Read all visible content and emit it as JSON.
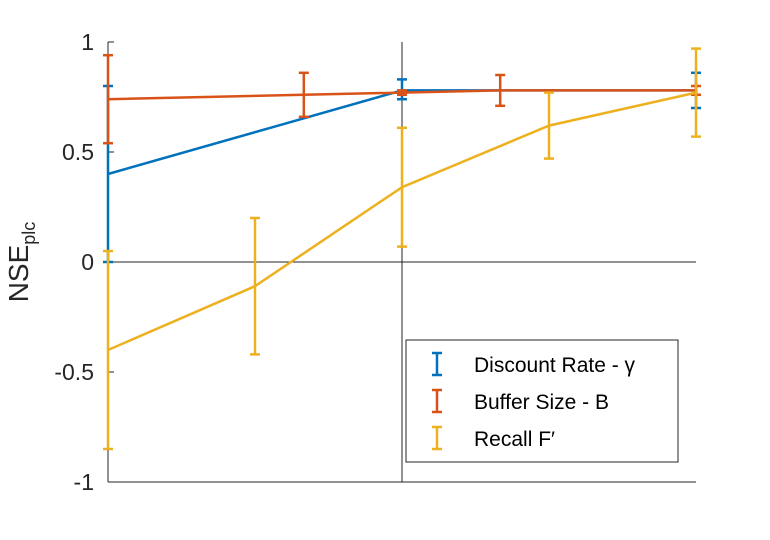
{
  "chart_data": {
    "type": "line",
    "title": "",
    "xlabel": "",
    "ylabel": "NSE",
    "ylabel_subscript": "plc",
    "ylim": [
      -1,
      1
    ],
    "xlim": [
      0,
      1
    ],
    "yticks": [
      {
        "value": 1,
        "label": "1"
      },
      {
        "value": 0.5,
        "label": "0.5"
      },
      {
        "value": 0,
        "label": "0"
      },
      {
        "value": -0.5,
        "label": "-0.5"
      },
      {
        "value": -1,
        "label": "-1"
      }
    ],
    "grid": false,
    "reference_lines": {
      "horizontal": 0,
      "vertical": 0.5
    },
    "legend_position": "bottom-right",
    "series": [
      {
        "name": "Discount Rate - γ",
        "color": "#0072bd",
        "points": [
          {
            "x": 0.0,
            "y": 0.4,
            "lo": 0.0,
            "hi": 0.8
          },
          {
            "x": 0.5,
            "y": 0.78,
            "lo": 0.74,
            "hi": 0.83
          },
          {
            "x": 1.0,
            "y": 0.78,
            "lo": 0.7,
            "hi": 0.86
          }
        ]
      },
      {
        "name": "Buffer Size - B",
        "color": "#d95319",
        "points": [
          {
            "x": 0.0,
            "y": 0.74,
            "lo": 0.54,
            "hi": 0.94
          },
          {
            "x": 0.333,
            "y": 0.76,
            "lo": 0.66,
            "hi": 0.86
          },
          {
            "x": 0.5,
            "y": 0.77,
            "lo": 0.76,
            "hi": 0.78
          },
          {
            "x": 0.667,
            "y": 0.78,
            "lo": 0.71,
            "hi": 0.85
          },
          {
            "x": 1.0,
            "y": 0.78,
            "lo": 0.76,
            "hi": 0.8
          }
        ]
      },
      {
        "name": "Recall F′",
        "color": "#edb120",
        "points": [
          {
            "x": 0.0,
            "y": -0.4,
            "lo": -0.85,
            "hi": 0.05
          },
          {
            "x": 0.25,
            "y": -0.11,
            "lo": -0.42,
            "hi": 0.2
          },
          {
            "x": 0.5,
            "y": 0.34,
            "lo": 0.07,
            "hi": 0.61
          },
          {
            "x": 0.75,
            "y": 0.62,
            "lo": 0.47,
            "hi": 0.77
          },
          {
            "x": 1.0,
            "y": 0.77,
            "lo": 0.57,
            "hi": 0.97
          }
        ]
      }
    ]
  }
}
